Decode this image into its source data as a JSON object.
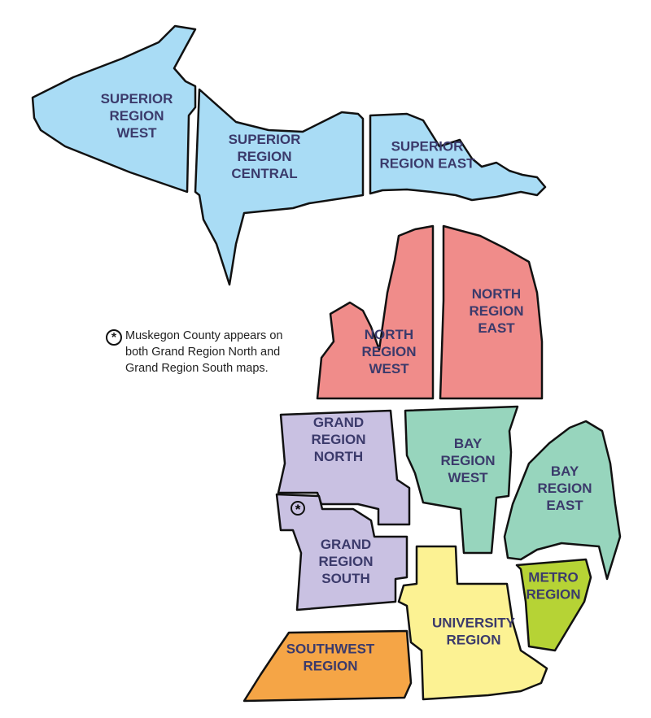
{
  "legend_note": {
    "symbol": "asterisk-in-circle",
    "text": "Muskegon County appears on\nboth Grand Region North and\nGrand Region South maps."
  },
  "regions": [
    {
      "id": "superior-west",
      "label": [
        "SUPERIOR",
        "REGION",
        "WEST"
      ],
      "color": "#a9dcf5"
    },
    {
      "id": "superior-central",
      "label": [
        "SUPERIOR",
        "REGION",
        "CENTRAL"
      ],
      "color": "#a9dcf5"
    },
    {
      "id": "superior-east",
      "label": [
        "SUPERIOR",
        "REGION EAST"
      ],
      "color": "#a9dcf5"
    },
    {
      "id": "north-west",
      "label": [
        "NORTH",
        "REGION",
        "WEST"
      ],
      "color": "#f08c8a"
    },
    {
      "id": "north-east",
      "label": [
        "NORTH",
        "REGION",
        "EAST"
      ],
      "color": "#f08c8a"
    },
    {
      "id": "grand-north",
      "label": [
        "GRAND",
        "REGION",
        "NORTH"
      ],
      "color": "#c9c1e2"
    },
    {
      "id": "grand-south",
      "label": [
        "GRAND",
        "REGION",
        "SOUTH"
      ],
      "color": "#c9c1e2"
    },
    {
      "id": "bay-west",
      "label": [
        "BAY",
        "REGION",
        "WEST"
      ],
      "color": "#97d5bd"
    },
    {
      "id": "bay-east",
      "label": [
        "BAY",
        "REGION",
        "EAST"
      ],
      "color": "#97d5bd"
    },
    {
      "id": "metro",
      "label": [
        "METRO",
        "REGION"
      ],
      "color": "#b6d335"
    },
    {
      "id": "university",
      "label": [
        "UNIVERSITY",
        "REGION"
      ],
      "color": "#fcf293"
    },
    {
      "id": "southwest",
      "label": [
        "SOUTHWEST",
        "REGION"
      ],
      "color": "#f5a546"
    }
  ],
  "label_color": "#3b3a6b",
  "muskegon_marker": "asterisk-in-circle"
}
